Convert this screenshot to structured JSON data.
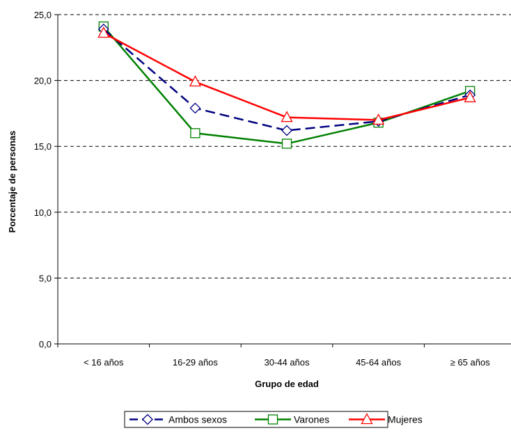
{
  "chart_data": {
    "type": "line",
    "title": "",
    "xlabel": "Grupo de edad",
    "ylabel": "Porcentaje de personas",
    "categories": [
      "< 16 años",
      "16-29 años",
      "30-44 años",
      "45-64 años",
      "≥ 65 años"
    ],
    "ylim": [
      0,
      25
    ],
    "yticks": [
      "0,0",
      "5,0",
      "10,0",
      "15,0",
      "20,0",
      "25,0"
    ],
    "grid": "horizontal dashed",
    "legend_position": "bottom",
    "series": [
      {
        "name": "Ambos sexos",
        "values": [
          23.9,
          17.9,
          16.2,
          16.9,
          18.9
        ],
        "color": "#000080",
        "marker": "diamond",
        "dash": true
      },
      {
        "name": "Varones",
        "values": [
          24.1,
          16.0,
          15.2,
          16.8,
          19.2
        ],
        "color": "#008000",
        "marker": "square",
        "dash": false
      },
      {
        "name": "Mujeres",
        "values": [
          23.6,
          19.9,
          17.2,
          17.0,
          18.7
        ],
        "color": "#ff0000",
        "marker": "triangle",
        "dash": false
      }
    ]
  }
}
